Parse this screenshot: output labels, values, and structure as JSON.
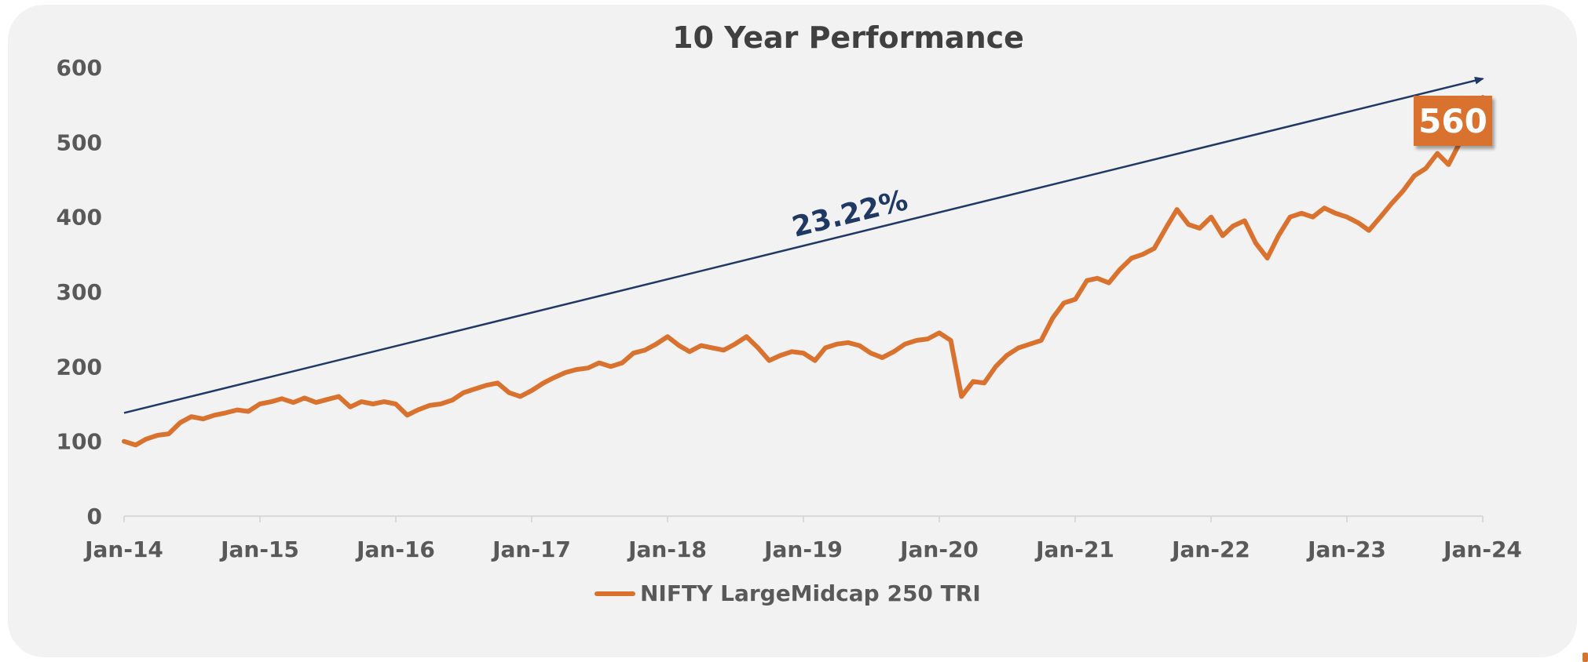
{
  "chart_data": {
    "type": "line",
    "title": "10 Year Performance",
    "xlabel": "",
    "ylabel": "",
    "ylim": [
      0,
      600
    ],
    "yticks": [
      "0",
      "100",
      "200",
      "300",
      "400",
      "500",
      "600"
    ],
    "xticks": [
      "Jan-14",
      "Jan-15",
      "Jan-16",
      "Jan-17",
      "Jan-18",
      "Jan-19",
      "Jan-20",
      "Jan-21",
      "Jan-22",
      "Jan-23",
      "Jan-24"
    ],
    "grid": false,
    "legend_position": "bottom",
    "series": [
      {
        "name": "NIFTY LargeMidcap 250 TRI",
        "color": "#d9722e",
        "points": [
          [
            "2014-01-01",
            100
          ],
          [
            "2014-02-01",
            95
          ],
          [
            "2014-03-01",
            103
          ],
          [
            "2014-04-01",
            108
          ],
          [
            "2014-05-01",
            110
          ],
          [
            "2014-06-01",
            125
          ],
          [
            "2014-07-01",
            133
          ],
          [
            "2014-08-01",
            130
          ],
          [
            "2014-09-01",
            135
          ],
          [
            "2014-10-01",
            138
          ],
          [
            "2014-11-01",
            142
          ],
          [
            "2014-12-01",
            140
          ],
          [
            "2015-01-01",
            150
          ],
          [
            "2015-02-01",
            153
          ],
          [
            "2015-03-01",
            157
          ],
          [
            "2015-04-01",
            152
          ],
          [
            "2015-05-01",
            158
          ],
          [
            "2015-06-01",
            152
          ],
          [
            "2015-07-01",
            156
          ],
          [
            "2015-08-01",
            160
          ],
          [
            "2015-09-01",
            146
          ],
          [
            "2015-10-01",
            153
          ],
          [
            "2015-11-01",
            150
          ],
          [
            "2015-12-01",
            153
          ],
          [
            "2016-01-01",
            150
          ],
          [
            "2016-02-01",
            135
          ],
          [
            "2016-03-01",
            142
          ],
          [
            "2016-04-01",
            148
          ],
          [
            "2016-05-01",
            150
          ],
          [
            "2016-06-01",
            155
          ],
          [
            "2016-07-01",
            165
          ],
          [
            "2016-08-01",
            170
          ],
          [
            "2016-09-01",
            175
          ],
          [
            "2016-10-01",
            178
          ],
          [
            "2016-11-01",
            165
          ],
          [
            "2016-12-01",
            160
          ],
          [
            "2017-01-01",
            168
          ],
          [
            "2017-02-01",
            178
          ],
          [
            "2017-03-01",
            185
          ],
          [
            "2017-04-01",
            192
          ],
          [
            "2017-05-01",
            196
          ],
          [
            "2017-06-01",
            198
          ],
          [
            "2017-07-01",
            205
          ],
          [
            "2017-08-01",
            200
          ],
          [
            "2017-09-01",
            205
          ],
          [
            "2017-10-01",
            218
          ],
          [
            "2017-11-01",
            222
          ],
          [
            "2017-12-01",
            230
          ],
          [
            "2018-01-01",
            240
          ],
          [
            "2018-02-01",
            228
          ],
          [
            "2018-03-01",
            220
          ],
          [
            "2018-04-01",
            228
          ],
          [
            "2018-05-01",
            225
          ],
          [
            "2018-06-01",
            222
          ],
          [
            "2018-07-01",
            230
          ],
          [
            "2018-08-01",
            240
          ],
          [
            "2018-09-01",
            225
          ],
          [
            "2018-10-01",
            208
          ],
          [
            "2018-11-01",
            215
          ],
          [
            "2018-12-01",
            220
          ],
          [
            "2019-01-01",
            218
          ],
          [
            "2019-02-01",
            208
          ],
          [
            "2019-03-01",
            225
          ],
          [
            "2019-04-01",
            230
          ],
          [
            "2019-05-01",
            232
          ],
          [
            "2019-06-01",
            228
          ],
          [
            "2019-07-01",
            218
          ],
          [
            "2019-08-01",
            212
          ],
          [
            "2019-09-01",
            220
          ],
          [
            "2019-10-01",
            230
          ],
          [
            "2019-11-01",
            235
          ],
          [
            "2019-12-01",
            237
          ],
          [
            "2020-01-01",
            245
          ],
          [
            "2020-02-01",
            235
          ],
          [
            "2020-03-01",
            160
          ],
          [
            "2020-04-01",
            180
          ],
          [
            "2020-05-01",
            178
          ],
          [
            "2020-06-01",
            200
          ],
          [
            "2020-07-01",
            215
          ],
          [
            "2020-08-01",
            225
          ],
          [
            "2020-09-01",
            230
          ],
          [
            "2020-10-01",
            235
          ],
          [
            "2020-11-01",
            265
          ],
          [
            "2020-12-01",
            285
          ],
          [
            "2021-01-01",
            290
          ],
          [
            "2021-02-01",
            315
          ],
          [
            "2021-03-01",
            318
          ],
          [
            "2021-04-01",
            312
          ],
          [
            "2021-05-01",
            330
          ],
          [
            "2021-06-01",
            345
          ],
          [
            "2021-07-01",
            350
          ],
          [
            "2021-08-01",
            358
          ],
          [
            "2021-09-01",
            385
          ],
          [
            "2021-10-01",
            410
          ],
          [
            "2021-11-01",
            390
          ],
          [
            "2021-12-01",
            385
          ],
          [
            "2022-01-01",
            400
          ],
          [
            "2022-02-01",
            375
          ],
          [
            "2022-03-01",
            388
          ],
          [
            "2022-04-01",
            395
          ],
          [
            "2022-05-01",
            365
          ],
          [
            "2022-06-01",
            345
          ],
          [
            "2022-07-01",
            375
          ],
          [
            "2022-08-01",
            400
          ],
          [
            "2022-09-01",
            405
          ],
          [
            "2022-10-01",
            400
          ],
          [
            "2022-11-01",
            412
          ],
          [
            "2022-12-01",
            405
          ],
          [
            "2023-01-01",
            400
          ],
          [
            "2023-02-01",
            392
          ],
          [
            "2023-03-01",
            382
          ],
          [
            "2023-04-01",
            400
          ],
          [
            "2023-05-01",
            418
          ],
          [
            "2023-06-01",
            435
          ],
          [
            "2023-07-01",
            455
          ],
          [
            "2023-08-01",
            465
          ],
          [
            "2023-09-01",
            485
          ],
          [
            "2023-10-01",
            470
          ],
          [
            "2023-11-01",
            500
          ],
          [
            "2023-12-01",
            545
          ],
          [
            "2024-01-01",
            560
          ]
        ]
      }
    ],
    "trend_line": {
      "start": [
        "2014-01-01",
        138
      ],
      "end": [
        "2024-01-01",
        585
      ],
      "label": "23.22%",
      "color": "#203864"
    },
    "callout": {
      "label": "560",
      "x": "2024-01-01",
      "y": 560
    }
  }
}
